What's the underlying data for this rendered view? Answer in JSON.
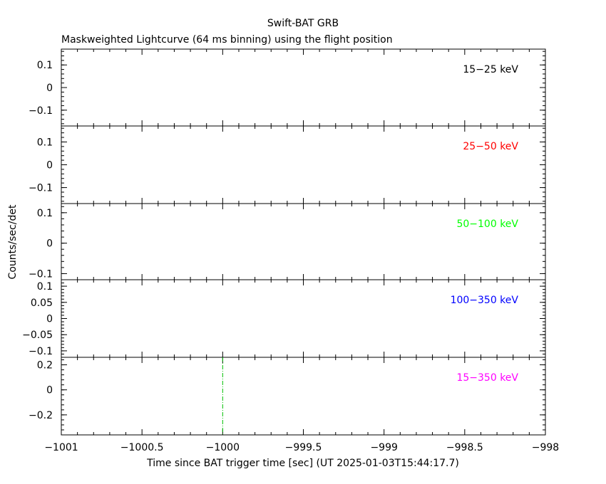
{
  "chart_data": {
    "type": "line",
    "title": "Swift-BAT GRB",
    "subtitle": "Maskweighted Lightcurve (64 ms binning) using the flight position",
    "xlabel": "Time since BAT trigger time [sec] (UT 2025-01-03T15:44:17.7)",
    "ylabel": "Counts/sec/det",
    "xlim": [
      -1001,
      -998
    ],
    "xticks": [
      {
        "value": -1001,
        "label": "−1001"
      },
      {
        "value": -1000.5,
        "label": "−1000.5"
      },
      {
        "value": -1000,
        "label": "−1000"
      },
      {
        "value": -999.5,
        "label": "−999.5"
      },
      {
        "value": -999,
        "label": "−999"
      },
      {
        "value": -998.5,
        "label": "−998.5"
      },
      {
        "value": -998,
        "label": "−998"
      }
    ],
    "panels": [
      {
        "band": "15−25 keV",
        "color": "#000000",
        "ylim": [
          -0.17,
          0.17
        ],
        "yticks": [
          {
            "value": 0.1,
            "label": "0.1"
          },
          {
            "value": 0,
            "label": "0"
          },
          {
            "value": -0.1,
            "label": "−0.1"
          }
        ],
        "series": []
      },
      {
        "band": "25−50 keV",
        "color": "#ff0000",
        "ylim": [
          -0.17,
          0.17
        ],
        "yticks": [
          {
            "value": 0.1,
            "label": "0.1"
          },
          {
            "value": 0,
            "label": "0"
          },
          {
            "value": -0.1,
            "label": "−0.1"
          }
        ],
        "series": []
      },
      {
        "band": "50−100 keV",
        "color": "#00ff00",
        "ylim": [
          -0.12,
          0.13
        ],
        "yticks": [
          {
            "value": 0.1,
            "label": "0.1"
          },
          {
            "value": 0,
            "label": "0"
          },
          {
            "value": -0.1,
            "label": "−0.1"
          }
        ],
        "series": []
      },
      {
        "band": "100−350 keV",
        "color": "#0000ff",
        "ylim": [
          -0.12,
          0.12
        ],
        "yticks": [
          {
            "value": 0.1,
            "label": "0.1"
          },
          {
            "value": 0.05,
            "label": "0.05"
          },
          {
            "value": 0,
            "label": "0"
          },
          {
            "value": -0.05,
            "label": "−0.05"
          },
          {
            "value": -0.1,
            "label": "−0.1"
          }
        ],
        "series": []
      },
      {
        "band": "15−350 keV",
        "color": "#ff00ff",
        "ylim": [
          -0.36,
          0.26
        ],
        "yticks": [
          {
            "value": 0.2,
            "label": "0.2"
          },
          {
            "value": 0,
            "label": "0"
          },
          {
            "value": -0.2,
            "label": "−0.2"
          }
        ],
        "series": [],
        "markers": [
          {
            "x": -1000,
            "color": "#00c000",
            "style": "dash-dot"
          }
        ]
      }
    ],
    "grid": false,
    "legend": "none"
  }
}
